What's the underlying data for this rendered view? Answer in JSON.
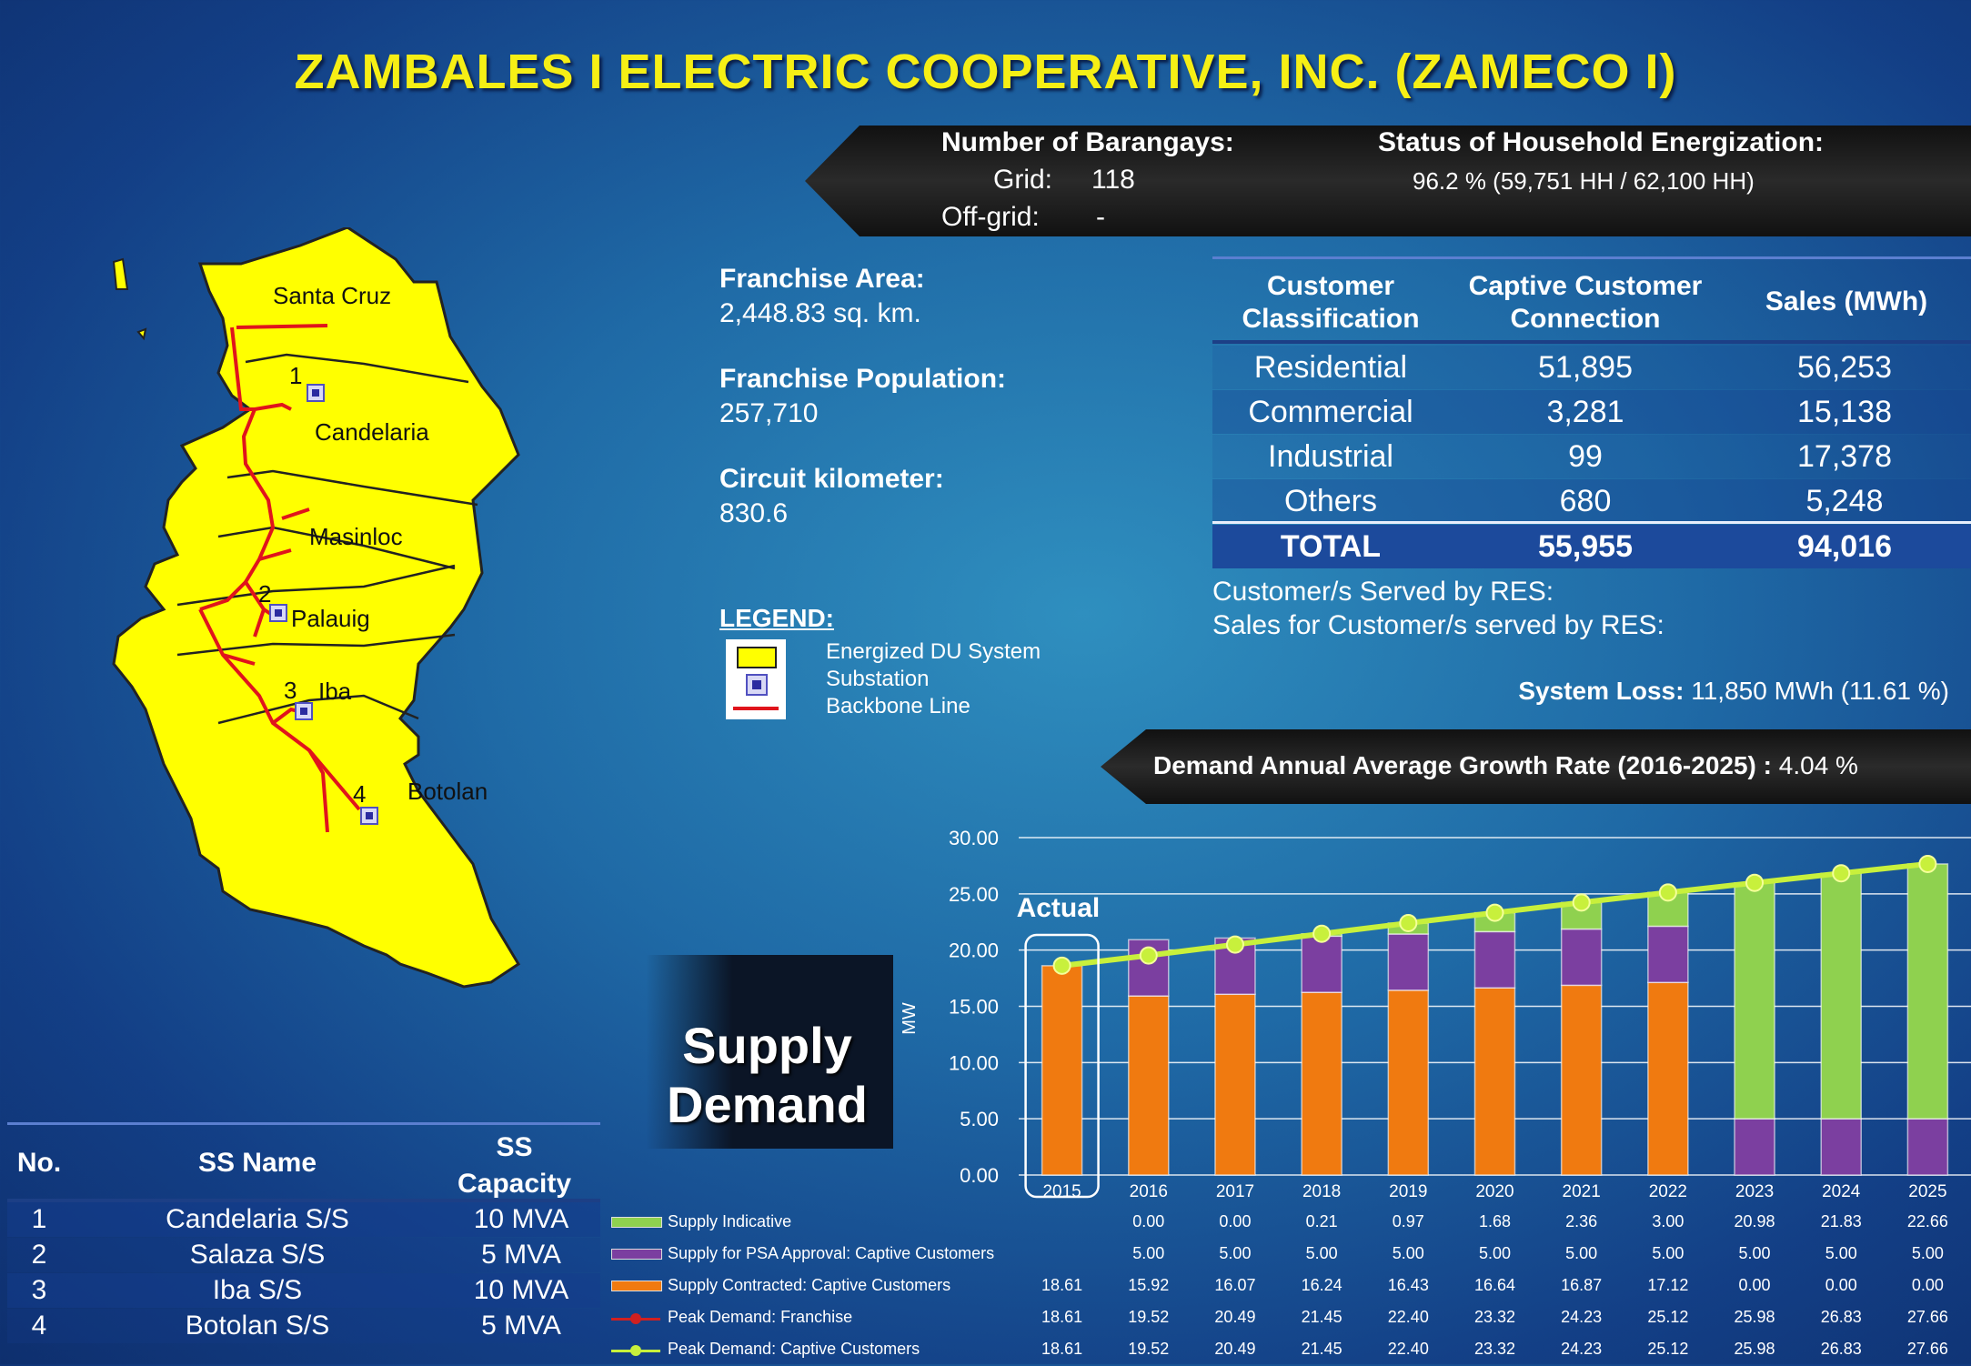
{
  "title": "ZAMBALES I ELECTRIC COOPERATIVE, INC. (ZAMECO I)",
  "barangays": {
    "label": "Number of Barangays:",
    "grid_label": "Grid:",
    "grid_value": "118",
    "offgrid_label": "Off-grid:",
    "offgrid_value": "-"
  },
  "energization": {
    "label": "Status of Household Energization:",
    "value": "96.2 % (59,751 HH /  62,100 HH)"
  },
  "franchise_area": {
    "label": "Franchise Area:",
    "value": "2,448.83 sq. km."
  },
  "franchise_population": {
    "label": "Franchise Population:",
    "value": "257,710"
  },
  "circuit_km": {
    "label": "Circuit kilometer:",
    "value": "830.6"
  },
  "legend": {
    "title": "LEGEND:",
    "items": [
      "Energized DU System",
      "Substation",
      "Backbone Line"
    ],
    "colors": {
      "du_system": "#ffff00",
      "substation": "#2b2ba0",
      "backbone": "#e0141c"
    }
  },
  "map_labels": {
    "towns": [
      "Santa Cruz",
      "Candelaria",
      "Masinloc",
      "Palauig",
      "Iba",
      "Botolan"
    ],
    "substation_numbers": [
      "1",
      "2",
      "3",
      "4"
    ]
  },
  "customer_table": {
    "headers": [
      "Customer Classification",
      "Captive Customer Connection",
      "Sales (MWh)"
    ],
    "rows": [
      [
        "Residential",
        "51,895",
        "56,253"
      ],
      [
        "Commercial",
        "3,281",
        "15,138"
      ],
      [
        "Industrial",
        "99",
        "17,378"
      ],
      [
        "Others",
        "680",
        "5,248"
      ]
    ],
    "total": [
      "TOTAL",
      "55,955",
      "94,016"
    ]
  },
  "res": {
    "served_label": "Customer/s Served by RES:",
    "sales_label": "Sales for Customer/s served by RES:"
  },
  "system_loss": {
    "label": "System Loss:",
    "value": "11,850 MWh (11.61 %)"
  },
  "growth": {
    "label": "Demand Annual Average Growth Rate (2016-2025) :",
    "value": "4.04 %"
  },
  "supply_demand_label": {
    "line1": "Supply",
    "line2": "Demand"
  },
  "ss_table": {
    "headers": [
      "No.",
      "SS Name",
      "SS Capacity"
    ],
    "rows": [
      [
        "1",
        "Candelaria S/S",
        "10 MVA"
      ],
      [
        "2",
        "Salaza S/S",
        "5 MVA"
      ],
      [
        "3",
        "Iba S/S",
        "10 MVA"
      ],
      [
        "4",
        "Botolan S/S",
        "5 MVA"
      ]
    ]
  },
  "chart_data": {
    "type": "bar",
    "stacked": true,
    "ylabel": "MW",
    "ylim": [
      0,
      30
    ],
    "yticks": [
      "0.00",
      "5.00",
      "10.00",
      "15.00",
      "20.00",
      "25.00",
      "30.00"
    ],
    "annotation": "Actual",
    "categories": [
      "2015",
      "2016",
      "2017",
      "2018",
      "2019",
      "2020",
      "2021",
      "2022",
      "2023",
      "2024",
      "2025"
    ],
    "series": [
      {
        "name": "Supply Indicative",
        "kind": "bar",
        "color": "#8fd14f",
        "values": [
          null,
          0.0,
          0.0,
          0.21,
          0.97,
          1.68,
          2.36,
          3.0,
          20.98,
          21.83,
          22.66
        ],
        "labels": [
          "",
          "0.00",
          "0.00",
          "0.21",
          "0.97",
          "1.68",
          "2.36",
          "3.00",
          "20.98",
          "21.83",
          "22.66"
        ]
      },
      {
        "name": "Supply for PSA Approval:  Captive Customers",
        "kind": "bar",
        "color": "#7b3fa0",
        "values": [
          null,
          5.0,
          5.0,
          5.0,
          5.0,
          5.0,
          5.0,
          5.0,
          5.0,
          5.0,
          5.0
        ],
        "labels": [
          "",
          "5.00",
          "5.00",
          "5.00",
          "5.00",
          "5.00",
          "5.00",
          "5.00",
          "5.00",
          "5.00",
          "5.00"
        ]
      },
      {
        "name": "Supply Contracted:  Captive Customers",
        "kind": "bar",
        "color": "#f07a10",
        "values": [
          18.61,
          15.92,
          16.07,
          16.24,
          16.43,
          16.64,
          16.87,
          17.12,
          0.0,
          0.0,
          0.0
        ],
        "labels": [
          "18.61",
          "15.92",
          "16.07",
          "16.24",
          "16.43",
          "16.64",
          "16.87",
          "17.12",
          "0.00",
          "0.00",
          "0.00"
        ]
      },
      {
        "name": "Peak Demand:  Franchise",
        "kind": "line",
        "color": "#d02020",
        "values": [
          18.61,
          19.52,
          20.49,
          21.45,
          22.4,
          23.32,
          24.23,
          25.12,
          25.98,
          26.83,
          27.66
        ],
        "labels": [
          "18.61",
          "19.52",
          "20.49",
          "21.45",
          "22.40",
          "23.32",
          "24.23",
          "25.12",
          "25.98",
          "26.83",
          "27.66"
        ]
      },
      {
        "name": "Peak Demand:  Captive Customers",
        "kind": "line",
        "color": "#c8f03c",
        "values": [
          18.61,
          19.52,
          20.49,
          21.45,
          22.4,
          23.32,
          24.23,
          25.12,
          25.98,
          26.83,
          27.66
        ],
        "labels": [
          "18.61",
          "19.52",
          "20.49",
          "21.45",
          "22.40",
          "23.32",
          "24.23",
          "25.12",
          "25.98",
          "26.83",
          "27.66"
        ]
      }
    ]
  }
}
